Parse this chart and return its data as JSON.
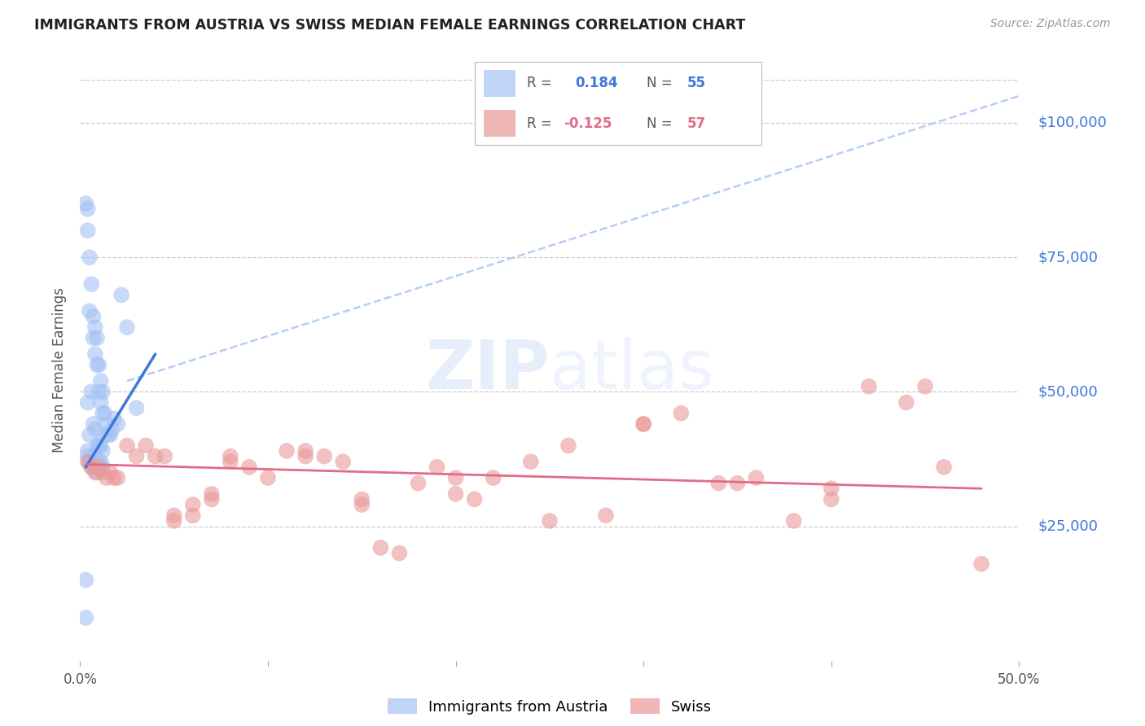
{
  "title": "IMMIGRANTS FROM AUSTRIA VS SWISS MEDIAN FEMALE EARNINGS CORRELATION CHART",
  "source": "Source: ZipAtlas.com",
  "ylabel": "Median Female Earnings",
  "yticks": [
    0,
    25000,
    50000,
    75000,
    100000
  ],
  "ytick_labels": [
    "",
    "$25,000",
    "$50,000",
    "$75,000",
    "$100,000"
  ],
  "xlim": [
    0.0,
    0.5
  ],
  "ylim": [
    0,
    108000
  ],
  "watermark_zip": "ZIP",
  "watermark_atlas": "atlas",
  "blue_color": "#a4c2f4",
  "pink_color": "#ea9999",
  "blue_line_color": "#3c78d8",
  "pink_line_color": "#e06c8a",
  "dashed_line_color": "#a4c2f4",
  "austria_x": [
    0.003,
    0.004,
    0.004,
    0.004,
    0.005,
    0.005,
    0.005,
    0.006,
    0.006,
    0.007,
    0.007,
    0.007,
    0.008,
    0.008,
    0.008,
    0.009,
    0.009,
    0.009,
    0.01,
    0.01,
    0.01,
    0.011,
    0.011,
    0.011,
    0.012,
    0.012,
    0.012,
    0.013,
    0.013,
    0.014,
    0.015,
    0.016,
    0.017,
    0.018,
    0.02,
    0.022,
    0.025,
    0.03,
    0.003,
    0.004,
    0.005,
    0.006,
    0.007,
    0.008,
    0.009,
    0.01,
    0.011,
    0.012,
    0.003,
    0.004,
    0.005,
    0.006,
    0.007,
    0.008,
    0.009
  ],
  "austria_y": [
    85000,
    84000,
    80000,
    48000,
    75000,
    65000,
    42000,
    70000,
    50000,
    64000,
    60000,
    44000,
    62000,
    57000,
    43000,
    60000,
    55000,
    40000,
    55000,
    50000,
    40000,
    52000,
    48000,
    40000,
    50000,
    46000,
    39000,
    46000,
    42000,
    44000,
    42000,
    42000,
    43000,
    45000,
    44000,
    68000,
    62000,
    47000,
    15000,
    38000,
    37000,
    38000,
    37000,
    38000,
    36000,
    37000,
    37000,
    36000,
    8000,
    39000,
    37000,
    36000,
    37000,
    36000,
    35000
  ],
  "swiss_x": [
    0.004,
    0.006,
    0.008,
    0.01,
    0.012,
    0.014,
    0.016,
    0.018,
    0.02,
    0.025,
    0.03,
    0.035,
    0.04,
    0.045,
    0.05,
    0.06,
    0.07,
    0.08,
    0.09,
    0.1,
    0.11,
    0.12,
    0.13,
    0.14,
    0.15,
    0.16,
    0.17,
    0.18,
    0.19,
    0.2,
    0.21,
    0.22,
    0.24,
    0.26,
    0.28,
    0.3,
    0.32,
    0.34,
    0.36,
    0.38,
    0.4,
    0.42,
    0.44,
    0.46,
    0.05,
    0.06,
    0.07,
    0.08,
    0.12,
    0.15,
    0.2,
    0.25,
    0.3,
    0.35,
    0.4,
    0.45,
    0.48
  ],
  "swiss_y": [
    37000,
    36000,
    35000,
    36000,
    35000,
    34000,
    35000,
    34000,
    34000,
    40000,
    38000,
    40000,
    38000,
    38000,
    27000,
    29000,
    31000,
    37000,
    36000,
    34000,
    39000,
    39000,
    38000,
    37000,
    30000,
    21000,
    20000,
    33000,
    36000,
    31000,
    30000,
    34000,
    37000,
    40000,
    27000,
    44000,
    46000,
    33000,
    34000,
    26000,
    32000,
    51000,
    48000,
    36000,
    26000,
    27000,
    30000,
    38000,
    38000,
    29000,
    34000,
    26000,
    44000,
    33000,
    30000,
    51000,
    18000
  ],
  "austria_line_x": [
    0.003,
    0.04
  ],
  "austria_line_y": [
    36000,
    57000
  ],
  "swiss_line_x": [
    0.004,
    0.48
  ],
  "swiss_line_y": [
    36500,
    32000
  ],
  "dashed_line_x": [
    0.025,
    0.5
  ],
  "dashed_line_y": [
    52000,
    105000
  ]
}
